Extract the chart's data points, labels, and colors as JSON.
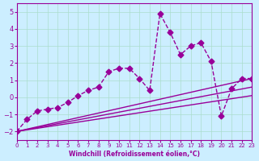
{
  "xlabel": "Windchill (Refroidissement éolien,°C)",
  "bg_color": "#cceeff",
  "grid_color": "#aaddcc",
  "line_color": "#990099",
  "xlim": [
    0,
    23
  ],
  "ylim": [
    -2.5,
    5.5
  ],
  "xticks": [
    0,
    1,
    2,
    3,
    4,
    5,
    6,
    7,
    8,
    9,
    10,
    11,
    12,
    13,
    14,
    15,
    16,
    17,
    18,
    19,
    20,
    21,
    22,
    23
  ],
  "yticks": [
    -2,
    -1,
    0,
    1,
    2,
    3,
    4,
    5
  ],
  "series1_x": [
    0,
    1,
    2,
    3,
    4,
    5,
    6,
    7,
    8,
    9,
    10,
    11,
    12,
    13,
    14,
    15,
    16,
    17,
    18,
    19,
    20,
    21,
    22,
    23
  ],
  "series1_y": [
    -2.0,
    -1.3,
    -0.8,
    -0.7,
    -0.6,
    -0.3,
    0.1,
    0.4,
    0.6,
    1.5,
    1.7,
    1.7,
    1.1,
    0.4,
    4.9,
    3.8,
    2.5,
    3.0,
    3.2,
    2.1,
    -1.1,
    0.5,
    1.1,
    1.1
  ],
  "series2_x": [
    0,
    23
  ],
  "series2_y": [
    -2.0,
    1.1
  ],
  "series3_x": [
    0,
    23
  ],
  "series3_y": [
    -2.0,
    0.6
  ],
  "series4_x": [
    0,
    23
  ],
  "series4_y": [
    -2.0,
    0.1
  ]
}
